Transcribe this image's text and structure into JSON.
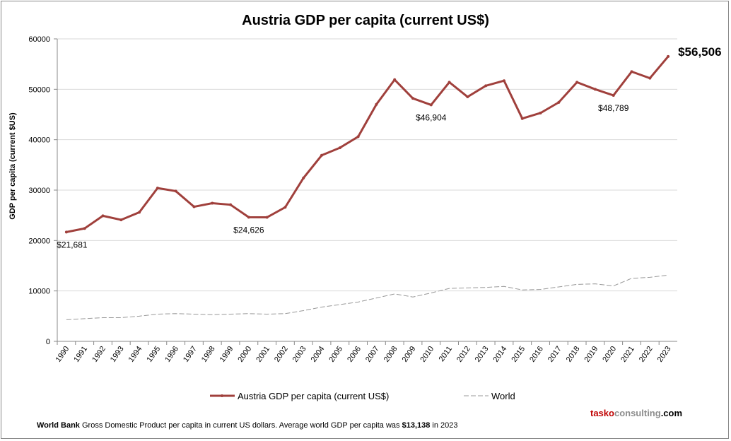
{
  "chart_data": {
    "type": "line",
    "title": "Austria GDP per capita (current US$)",
    "xlabel": "",
    "ylabel": "GDP per capita (current $US)",
    "ylim": [
      0,
      60000
    ],
    "yticks": [
      "0",
      "10000",
      "20000",
      "30000",
      "40000",
      "50000",
      "60000"
    ],
    "grid": true,
    "legend_position": "bottom",
    "x": [
      1990,
      1991,
      1992,
      1993,
      1994,
      1995,
      1996,
      1997,
      1998,
      1999,
      2000,
      2001,
      2002,
      2003,
      2004,
      2005,
      2006,
      2007,
      2008,
      2009,
      2010,
      2011,
      2012,
      2013,
      2014,
      2015,
      2016,
      2017,
      2018,
      2019,
      2020,
      2021,
      2022,
      2023
    ],
    "series": [
      {
        "name": "Austria GDP per capita (current US$)",
        "color": "#a0403c",
        "style": "solid-markers",
        "values": [
          21681,
          22400,
          24900,
          24100,
          25600,
          30400,
          29800,
          26700,
          27400,
          27100,
          24626,
          24600,
          26600,
          32400,
          36900,
          38400,
          40600,
          47000,
          51900,
          48200,
          46904,
          51400,
          48500,
          50700,
          51700,
          44200,
          45300,
          47400,
          51400,
          50000,
          48789,
          53500,
          52200,
          56506
        ]
      },
      {
        "name": "World",
        "color": "#999999",
        "style": "dashed",
        "values": [
          4300,
          4500,
          4700,
          4700,
          5000,
          5400,
          5500,
          5400,
          5300,
          5400,
          5500,
          5400,
          5500,
          6100,
          6800,
          7300,
          7800,
          8600,
          9400,
          8800,
          9600,
          10500,
          10600,
          10700,
          10900,
          10200,
          10300,
          10800,
          11300,
          11400,
          11000,
          12500,
          12700,
          13138
        ]
      }
    ],
    "annotations": [
      {
        "year": 1990,
        "text": "$21,681"
      },
      {
        "year": 2000,
        "text": "$24,626"
      },
      {
        "year": 2010,
        "text": "$46,904"
      },
      {
        "year": 2020,
        "text": "$48,789"
      },
      {
        "year": 2023,
        "text": "$56,506",
        "emphasis": true
      }
    ]
  },
  "footer": {
    "source_bold": "World Bank",
    "source_text": " Gross Domestic Product per capita in current US dollars.  Average world GDP per capita was ",
    "world_value": "$13,138",
    "source_tail": " in 2023"
  },
  "brand": {
    "part1": "tasko",
    "part2": "consulting",
    "part3": ".com"
  }
}
